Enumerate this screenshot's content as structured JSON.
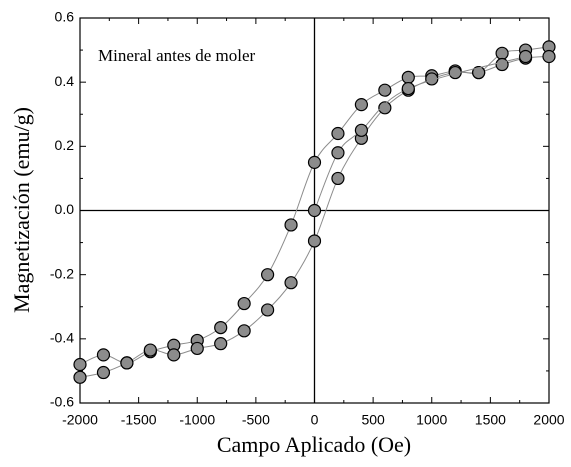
{
  "chart_data": {
    "type": "scatter",
    "x_label": "Campo Aplicado (Oe)",
    "y_label": "Magnetización (emu/g)",
    "annotation": "Mineral antes de moler",
    "xlim": [
      -2000,
      2000
    ],
    "xticks": [
      -2000,
      -1500,
      -1000,
      -500,
      0,
      500,
      1000,
      1500,
      2000
    ],
    "ylim": [
      -0.6,
      0.6
    ],
    "yticks": [
      -0.6,
      -0.4,
      -0.2,
      {
        "value": 0,
        "label": "0.0"
      },
      0.2,
      0.4,
      0.6
    ],
    "marker_color": "#8c8c8c",
    "line_color": "#8c8c8c",
    "series": [
      {
        "x": [
          -2000,
          -1800,
          -1600,
          -1400,
          -1200,
          -1000,
          -800,
          -600,
          -400,
          -200,
          0,
          200,
          400,
          600,
          800,
          1000,
          1200,
          1400,
          1600,
          1800,
          2000
        ],
        "values": [
          -0.48,
          -0.45,
          -0.475,
          -0.44,
          -0.42,
          -0.405,
          -0.365,
          -0.29,
          -0.2,
          -0.045,
          0.15,
          0.24,
          0.33,
          0.375,
          0.415,
          0.42,
          0.435,
          0.43,
          0.49,
          0.5,
          0.51
        ]
      },
      {
        "x": [
          -2000,
          -1800,
          -1600,
          -1400,
          -1200,
          -1000,
          -800,
          -600,
          -400,
          -200,
          0,
          200,
          400,
          600,
          800,
          1000,
          1200,
          1400,
          1600,
          1800,
          2000
        ],
        "values": [
          -0.52,
          -0.505,
          -0.475,
          -0.435,
          -0.45,
          -0.43,
          -0.415,
          -0.375,
          -0.31,
          -0.225,
          -0.095,
          0.1,
          0.225,
          0.32,
          0.375,
          0.41,
          0.43,
          0.43,
          0.455,
          0.475,
          0.48
        ]
      },
      {
        "x": [
          0,
          200,
          400,
          800,
          1800
        ],
        "values": [
          0,
          0.18,
          0.25,
          0.38,
          0.48
        ]
      }
    ]
  }
}
